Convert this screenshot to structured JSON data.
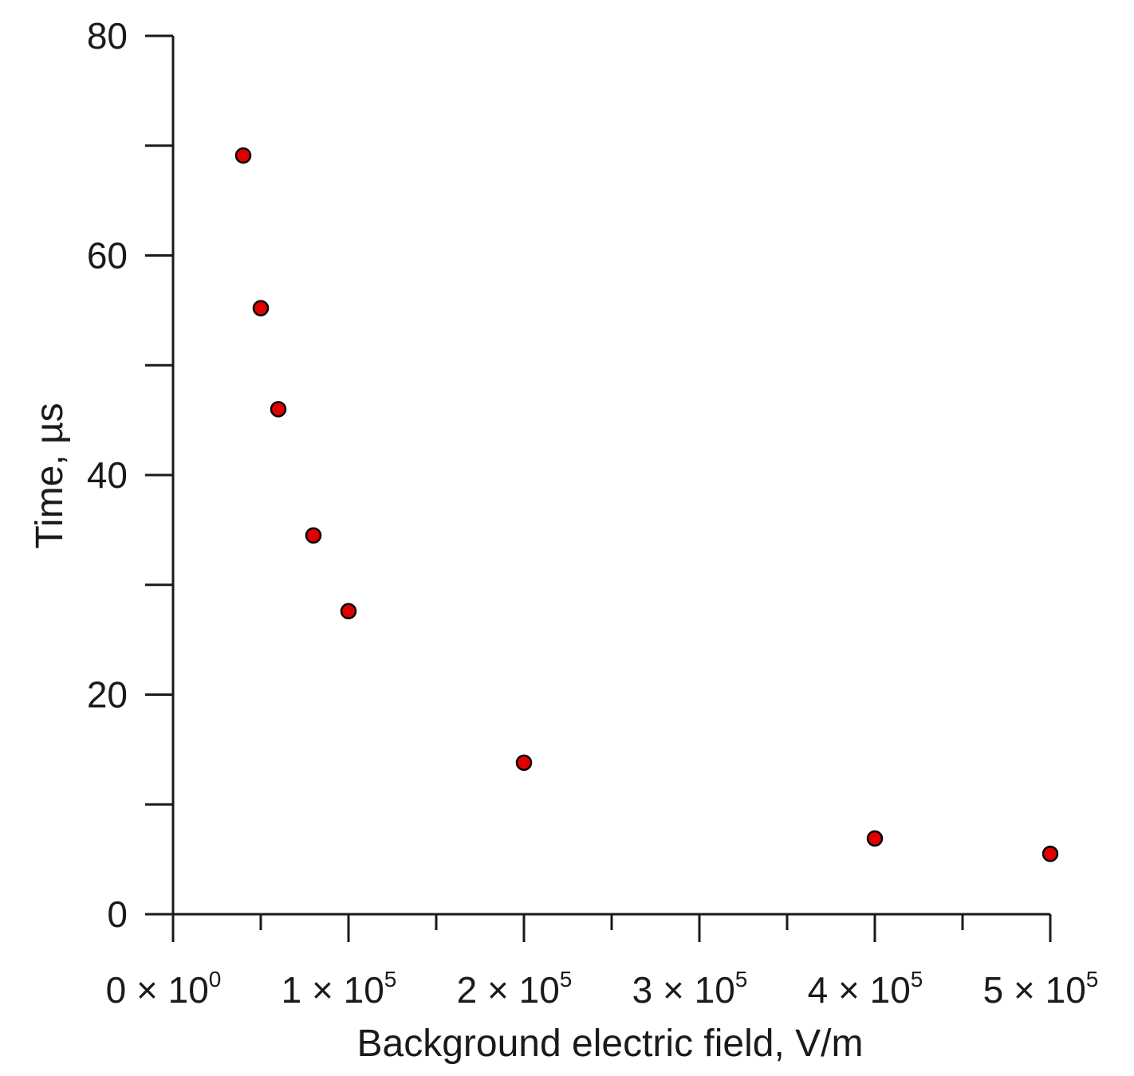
{
  "chart_data": {
    "type": "scatter",
    "xlabel": "Background electric field, V/m",
    "ylabel": "Time, µs",
    "xlim": [
      0,
      500000
    ],
    "ylim": [
      0,
      80
    ],
    "x_ticks": [
      {
        "value": 0,
        "mantissa": "0",
        "exponent": "0"
      },
      {
        "value": 100000,
        "mantissa": "1",
        "exponent": "5"
      },
      {
        "value": 200000,
        "mantissa": "2",
        "exponent": "5"
      },
      {
        "value": 300000,
        "mantissa": "3",
        "exponent": "5"
      },
      {
        "value": 400000,
        "mantissa": "4",
        "exponent": "5"
      },
      {
        "value": 500000,
        "mantissa": "5",
        "exponent": "5"
      }
    ],
    "x_minor_step": 50000,
    "y_ticks": [
      0,
      20,
      40,
      60,
      80
    ],
    "y_minor_step": 10,
    "grid": false,
    "marker_color": "#e00000",
    "marker_edge_color": "#000000",
    "series": [
      {
        "x": [
          40000,
          50000,
          60000,
          80000,
          100000,
          200000,
          400000,
          500000
        ],
        "y": [
          69.1,
          55.2,
          46.0,
          34.5,
          27.6,
          13.8,
          6.9,
          5.5
        ]
      }
    ]
  }
}
